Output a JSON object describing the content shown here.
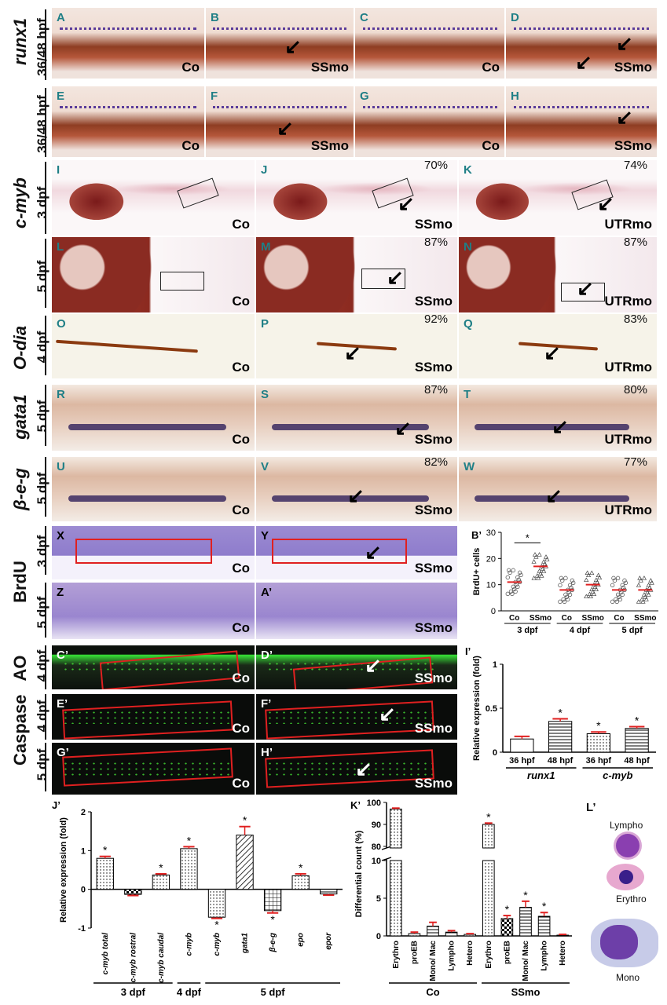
{
  "row_labels": {
    "runx1": "runx1",
    "cmyb": "c-myb",
    "odia": "O-dia",
    "gata1": "gata1",
    "beg": "β-e-g",
    "brdu": "BrdU",
    "ao": "AO",
    "caspase": "Caspase"
  },
  "stages": {
    "s3648": "36/48 hpf",
    "d3": "3 dpf",
    "d4": "4 dpf",
    "d5": "5 dpf"
  },
  "panels": [
    {
      "id": "A",
      "tag": "Co"
    },
    {
      "id": "B",
      "tag": "SSmo"
    },
    {
      "id": "C",
      "tag": "Co"
    },
    {
      "id": "D",
      "tag": "SSmo"
    },
    {
      "id": "E",
      "tag": "Co"
    },
    {
      "id": "F",
      "tag": "SSmo"
    },
    {
      "id": "G",
      "tag": "Co"
    },
    {
      "id": "H",
      "tag": "SSmo"
    },
    {
      "id": "I",
      "tag": "Co"
    },
    {
      "id": "J",
      "tag": "SSmo",
      "pct": "70%"
    },
    {
      "id": "K",
      "tag": "UTRmo",
      "pct": "74%"
    },
    {
      "id": "L",
      "tag": "Co"
    },
    {
      "id": "M",
      "tag": "SSmo",
      "pct": "87%"
    },
    {
      "id": "N",
      "tag": "UTRmo",
      "pct": "87%"
    },
    {
      "id": "O",
      "tag": "Co"
    },
    {
      "id": "P",
      "tag": "SSmo",
      "pct": "92%"
    },
    {
      "id": "Q",
      "tag": "UTRmo",
      "pct": "83%"
    },
    {
      "id": "R",
      "tag": "Co"
    },
    {
      "id": "S",
      "tag": "SSmo",
      "pct": "87%"
    },
    {
      "id": "T",
      "tag": "UTRmo",
      "pct": "80%"
    },
    {
      "id": "U",
      "tag": "Co"
    },
    {
      "id": "V",
      "tag": "SSmo",
      "pct": "82%"
    },
    {
      "id": "W",
      "tag": "UTRmo",
      "pct": "77%"
    },
    {
      "id": "X",
      "tag": "Co"
    },
    {
      "id": "Y",
      "tag": "SSmo"
    },
    {
      "id": "Z",
      "tag": "Co"
    },
    {
      "id": "A’",
      "tag": "SSmo"
    },
    {
      "id": "C’",
      "tag": "Co"
    },
    {
      "id": "D’",
      "tag": "SSmo"
    },
    {
      "id": "E’",
      "tag": "Co"
    },
    {
      "id": "F’",
      "tag": "SSmo"
    },
    {
      "id": "G’",
      "tag": "Co"
    },
    {
      "id": "H’",
      "tag": "SSmo"
    }
  ],
  "colors": {
    "stain": "#5a3c9a",
    "embryo": "#b5573a",
    "fluor": "#4cff3a",
    "box": "#e02020",
    "sig": "#e02020"
  },
  "chart_data": [
    {
      "id": "B’",
      "type": "scatter",
      "ylabel": "BrdU+ cells",
      "ylim": [
        0,
        30
      ],
      "yticks": [
        0,
        10,
        20,
        30
      ],
      "categories": [
        "Co",
        "SSmo",
        "Co",
        "SSmo",
        "Co",
        "SSmo"
      ],
      "groups": [
        "3 dpf",
        "4 dpf",
        "5 dpf"
      ],
      "means": [
        11,
        17,
        8,
        10,
        8,
        8
      ],
      "significance": "*"
    },
    {
      "id": "I’",
      "type": "bar",
      "ylabel": "Relative expression (fold)",
      "ylim": [
        0,
        1.0
      ],
      "yticks": [
        0,
        0.5,
        1.0
      ],
      "categories": [
        "36 hpf",
        "48 hpf",
        "36 hpf",
        "48 hpf"
      ],
      "groups": [
        "runx1",
        "c-myb"
      ],
      "values": [
        0.15,
        0.35,
        0.21,
        0.27
      ],
      "errors": [
        0.03,
        0.03,
        0.02,
        0.02
      ],
      "significant": [
        false,
        true,
        true,
        true
      ]
    },
    {
      "id": "J’",
      "type": "bar",
      "ylabel": "Relative expression (fold)",
      "ylim": [
        -1,
        2
      ],
      "yticks": [
        -1,
        0,
        1,
        2
      ],
      "categories": [
        "c-myb total",
        "c-myb rostral",
        "c-myb caudal",
        "c-myb",
        "c-myb",
        "gata1",
        "β-e-g",
        "epo",
        "epor"
      ],
      "groups": [
        "3 dpf",
        "4 dpf",
        "5 dpf"
      ],
      "values": [
        0.8,
        -0.13,
        0.37,
        1.05,
        -0.72,
        1.4,
        -0.55,
        0.35,
        -0.12
      ],
      "errors": [
        0.05,
        0.03,
        0.03,
        0.05,
        0.03,
        0.22,
        0.06,
        0.05,
        0.03
      ],
      "significant": [
        true,
        false,
        true,
        true,
        true,
        true,
        true,
        true,
        false
      ]
    },
    {
      "id": "K’",
      "type": "bar",
      "ylabel": "Differential count (%)",
      "yticks": [
        0,
        5,
        10,
        80,
        90,
        100
      ],
      "categories": [
        "Erythro",
        "proEB",
        "Mono/ Mac",
        "Lympho",
        "Hetero",
        "Erythro",
        "proEB",
        "Mono/ Mac",
        "Lympho",
        "Hetero"
      ],
      "groups": [
        "Co",
        "SSmo"
      ],
      "values": [
        97.0,
        0.3,
        1.3,
        0.5,
        0.2,
        90.0,
        2.3,
        3.8,
        2.6,
        0.1
      ],
      "errors": [
        0.4,
        0.2,
        0.5,
        0.2,
        0.1,
        0.6,
        0.4,
        0.8,
        0.5,
        0.1
      ],
      "significant": [
        false,
        false,
        false,
        false,
        false,
        true,
        true,
        true,
        true,
        false
      ]
    }
  ],
  "l_prime": {
    "id": "L’",
    "labels": [
      "Lympho",
      "Erythro",
      "Mono"
    ]
  }
}
